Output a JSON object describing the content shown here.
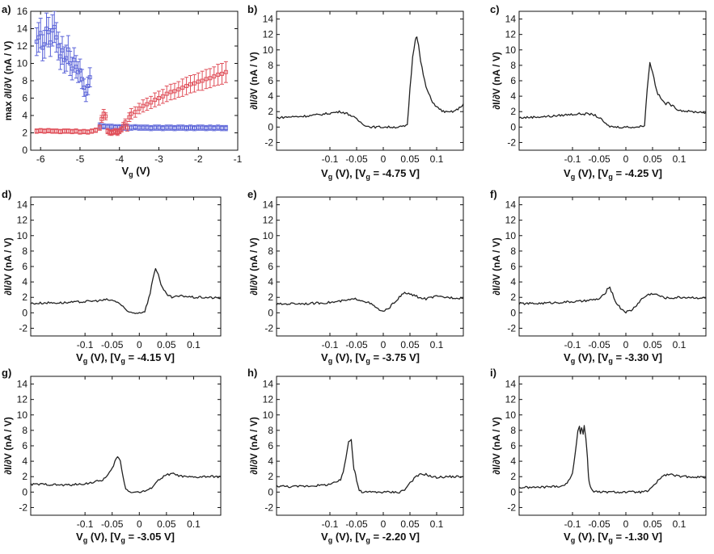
{
  "chart_data": [
    {
      "panel": "a)",
      "type": "scatter",
      "xlabel_main": "V",
      "xlabel_sub": "g",
      "xlabel_tail": " (V)",
      "ylabel": "max ∂I/∂V (nA / V)",
      "xlim": [
        -6.25,
        -1
      ],
      "ylim": [
        0,
        16
      ],
      "xticks": [
        -6,
        -5,
        -4,
        -3,
        -2,
        -1
      ],
      "xtick_labels": [
        "-6",
        "-5",
        "-4",
        "-3",
        "-2",
        "-1"
      ],
      "yticks": [
        0,
        2,
        4,
        6,
        8,
        10,
        12,
        14,
        16
      ],
      "ytick_labels": [
        "0",
        "2",
        "4",
        "6",
        "8",
        "10",
        "12",
        "14",
        "16"
      ],
      "series": [
        {
          "name": "blue",
          "color": "#5a63d8",
          "x": [
            -6.1,
            -6.05,
            -6.0,
            -5.95,
            -5.9,
            -5.85,
            -5.8,
            -5.75,
            -5.7,
            -5.65,
            -5.6,
            -5.55,
            -5.5,
            -5.45,
            -5.4,
            -5.35,
            -5.3,
            -5.25,
            -5.2,
            -5.15,
            -5.1,
            -5.05,
            -5.0,
            -4.95,
            -4.9,
            -4.85,
            -4.8,
            -4.75,
            -4.5,
            -4.4,
            -4.3,
            -4.2,
            -4.1,
            -4.0,
            -3.9,
            -3.8,
            -3.7,
            -3.6,
            -3.5,
            -3.4,
            -3.3,
            -3.2,
            -3.1,
            -3.0,
            -2.9,
            -2.8,
            -2.7,
            -2.6,
            -2.5,
            -2.4,
            -2.3,
            -2.2,
            -2.1,
            -2.0,
            -1.9,
            -1.8,
            -1.7,
            -1.6,
            -1.5,
            -1.4,
            -1.3
          ],
          "y": [
            12.5,
            13.0,
            13.5,
            11.8,
            12.2,
            14.0,
            13.6,
            12.4,
            13.8,
            14.2,
            13.0,
            12.0,
            10.8,
            11.5,
            10.4,
            10.6,
            11.6,
            10.0,
            9.4,
            10.4,
            9.6,
            9.0,
            9.2,
            8.2,
            7.2,
            6.5,
            7.4,
            8.4,
            2.8,
            2.75,
            2.7,
            2.7,
            2.65,
            2.65,
            2.6,
            2.6,
            2.6,
            2.65,
            2.6,
            2.6,
            2.6,
            2.55,
            2.6,
            2.6,
            2.55,
            2.6,
            2.6,
            2.55,
            2.6,
            2.6,
            2.55,
            2.6,
            2.55,
            2.6,
            2.6,
            2.55,
            2.6,
            2.55,
            2.6,
            2.55,
            2.55
          ],
          "err": [
            1.6,
            1.7,
            1.7,
            1.5,
            1.6,
            1.8,
            1.7,
            1.6,
            1.8,
            1.8,
            1.7,
            1.6,
            1.5,
            1.6,
            1.5,
            1.5,
            1.6,
            1.4,
            1.3,
            1.4,
            1.3,
            1.2,
            1.3,
            1.1,
            1.0,
            0.9,
            1.0,
            1.1,
            0.35,
            0.3,
            0.3,
            0.3,
            0.3,
            0.3,
            0.3,
            0.3,
            0.3,
            0.3,
            0.3,
            0.3,
            0.3,
            0.3,
            0.3,
            0.3,
            0.3,
            0.3,
            0.3,
            0.3,
            0.3,
            0.3,
            0.3,
            0.3,
            0.3,
            0.3,
            0.3,
            0.3,
            0.3,
            0.3,
            0.3,
            0.3,
            0.3
          ]
        },
        {
          "name": "red",
          "color": "#e0505a",
          "x": [
            -6.1,
            -6.0,
            -5.9,
            -5.8,
            -5.7,
            -5.6,
            -5.5,
            -5.4,
            -5.3,
            -5.2,
            -5.1,
            -5.0,
            -4.9,
            -4.8,
            -4.7,
            -4.6,
            -4.5,
            -4.45,
            -4.4,
            -4.35,
            -4.3,
            -4.25,
            -4.2,
            -4.15,
            -4.1,
            -4.05,
            -4.0,
            -3.95,
            -3.9,
            -3.85,
            -3.8,
            -3.75,
            -3.7,
            -3.6,
            -3.5,
            -3.4,
            -3.3,
            -3.2,
            -3.1,
            -3.0,
            -2.9,
            -2.8,
            -2.7,
            -2.6,
            -2.5,
            -2.4,
            -2.3,
            -2.2,
            -2.1,
            -2.0,
            -1.9,
            -1.8,
            -1.7,
            -1.6,
            -1.5,
            -1.4,
            -1.3
          ],
          "y": [
            2.2,
            2.25,
            2.2,
            2.25,
            2.2,
            2.2,
            2.15,
            2.2,
            2.2,
            2.15,
            2.2,
            2.1,
            2.15,
            2.1,
            2.2,
            2.3,
            2.6,
            3.6,
            4.2,
            3.9,
            2.2,
            2.05,
            2.0,
            2.1,
            2.2,
            2.0,
            2.2,
            2.4,
            2.8,
            3.2,
            2.6,
            3.8,
            4.2,
            4.4,
            4.8,
            5.1,
            5.3,
            5.5,
            5.8,
            6.0,
            6.2,
            6.5,
            6.7,
            6.8,
            7.0,
            7.2,
            7.4,
            7.6,
            7.7,
            7.9,
            8.0,
            8.2,
            8.3,
            8.5,
            8.7,
            8.8,
            9.0
          ],
          "err": [
            0.25,
            0.25,
            0.25,
            0.25,
            0.25,
            0.25,
            0.25,
            0.25,
            0.25,
            0.25,
            0.25,
            0.25,
            0.25,
            0.25,
            0.25,
            0.25,
            0.3,
            0.4,
            0.5,
            0.4,
            0.3,
            0.3,
            0.3,
            0.3,
            0.3,
            0.3,
            0.3,
            0.3,
            0.4,
            0.4,
            0.4,
            0.5,
            0.6,
            0.6,
            0.6,
            0.7,
            0.7,
            0.7,
            0.8,
            0.8,
            0.8,
            0.9,
            0.9,
            0.9,
            0.9,
            1.0,
            1.0,
            1.0,
            1.0,
            1.0,
            1.1,
            1.1,
            1.1,
            1.1,
            1.2,
            1.2,
            1.2
          ]
        }
      ]
    },
    {
      "panel": "b)",
      "type": "line",
      "vg_value": "-4.75",
      "x": [
        -0.2,
        -0.18,
        -0.15,
        -0.12,
        -0.1,
        -0.09,
        -0.08,
        -0.07,
        -0.06,
        -0.05,
        -0.04,
        -0.03,
        -0.02,
        0.0,
        0.02,
        0.03,
        0.04,
        0.045,
        0.05,
        0.055,
        0.06,
        0.063,
        0.066,
        0.07,
        0.075,
        0.08,
        0.09,
        0.1,
        0.11,
        0.12,
        0.13,
        0.14,
        0.15
      ],
      "y": [
        1.2,
        1.3,
        1.4,
        1.6,
        1.8,
        1.9,
        2.0,
        1.8,
        1.5,
        1.0,
        0.5,
        0.1,
        0.0,
        0.0,
        0.0,
        0.0,
        0.1,
        0.2,
        5.0,
        9.0,
        11.4,
        11.8,
        10.6,
        8.5,
        6.8,
        5.2,
        3.5,
        2.6,
        2.1,
        1.9,
        2.0,
        2.3,
        3.0
      ]
    },
    {
      "panel": "c)",
      "type": "line",
      "vg_value": "-4.25",
      "x": [
        -0.2,
        -0.17,
        -0.14,
        -0.11,
        -0.09,
        -0.07,
        -0.06,
        -0.05,
        -0.04,
        -0.035,
        -0.03,
        -0.02,
        0.0,
        0.02,
        0.03,
        0.035,
        0.04,
        0.045,
        0.05,
        0.055,
        0.06,
        0.07,
        0.075,
        0.08,
        0.09,
        0.1,
        0.12,
        0.15
      ],
      "y": [
        1.2,
        1.3,
        1.4,
        1.6,
        1.7,
        1.7,
        1.6,
        1.2,
        0.6,
        0.2,
        0.1,
        0.0,
        0.0,
        0.0,
        0.1,
        0.3,
        5.0,
        8.3,
        7.2,
        5.5,
        4.3,
        3.3,
        3.0,
        3.1,
        2.6,
        2.2,
        2.0,
        1.9
      ]
    },
    {
      "panel": "d)",
      "type": "line",
      "vg_value": "-4.15",
      "x": [
        -0.2,
        -0.17,
        -0.14,
        -0.11,
        -0.09,
        -0.07,
        -0.06,
        -0.05,
        -0.04,
        -0.03,
        -0.025,
        -0.02,
        -0.01,
        0.0,
        0.01,
        0.02,
        0.025,
        0.03,
        0.035,
        0.04,
        0.05,
        0.06,
        0.07,
        0.08,
        0.1,
        0.12,
        0.15
      ],
      "y": [
        1.2,
        1.3,
        1.3,
        1.4,
        1.5,
        1.6,
        1.7,
        1.6,
        1.4,
        0.8,
        0.3,
        0.1,
        0.0,
        0.0,
        0.2,
        2.5,
        4.5,
        5.8,
        5.0,
        3.5,
        2.4,
        2.0,
        2.1,
        2.2,
        2.0,
        2.0,
        1.9
      ]
    },
    {
      "panel": "e)",
      "type": "line",
      "vg_value": "-3.75",
      "x": [
        -0.2,
        -0.17,
        -0.14,
        -0.11,
        -0.09,
        -0.07,
        -0.05,
        -0.04,
        -0.03,
        -0.02,
        -0.01,
        0.0,
        0.01,
        0.02,
        0.03,
        0.04,
        0.05,
        0.06,
        0.07,
        0.08,
        0.09,
        0.1,
        0.12,
        0.15
      ],
      "y": [
        1.1,
        1.2,
        1.2,
        1.3,
        1.4,
        1.6,
        1.8,
        1.6,
        1.4,
        1.0,
        0.5,
        0.1,
        0.6,
        1.3,
        2.0,
        2.6,
        2.4,
        2.2,
        1.9,
        1.8,
        2.0,
        2.1,
        2.0,
        1.9
      ]
    },
    {
      "panel": "f)",
      "type": "line",
      "vg_value": "-3.30",
      "x": [
        -0.2,
        -0.17,
        -0.14,
        -0.11,
        -0.08,
        -0.06,
        -0.05,
        -0.04,
        -0.035,
        -0.03,
        -0.025,
        -0.02,
        -0.01,
        0.0,
        0.01,
        0.02,
        0.03,
        0.04,
        0.05,
        0.06,
        0.07,
        0.08,
        0.1,
        0.12,
        0.15
      ],
      "y": [
        1.2,
        1.2,
        1.3,
        1.4,
        1.5,
        1.7,
        1.8,
        2.4,
        3.0,
        3.2,
        2.5,
        1.5,
        0.6,
        0.1,
        0.3,
        1.0,
        1.8,
        2.3,
        2.5,
        2.3,
        2.0,
        1.9,
        2.0,
        2.0,
        1.9
      ]
    },
    {
      "panel": "g)",
      "type": "line",
      "vg_value": "-3.05",
      "x": [
        -0.2,
        -0.17,
        -0.14,
        -0.11,
        -0.09,
        -0.07,
        -0.06,
        -0.05,
        -0.045,
        -0.04,
        -0.035,
        -0.03,
        -0.025,
        -0.02,
        -0.01,
        0.0,
        0.01,
        0.02,
        0.03,
        0.04,
        0.05,
        0.06,
        0.07,
        0.08,
        0.1,
        0.12,
        0.15
      ],
      "y": [
        1.0,
        1.0,
        0.9,
        1.0,
        1.2,
        1.5,
        2.0,
        3.0,
        4.0,
        4.6,
        4.0,
        2.0,
        0.5,
        0.1,
        0.0,
        0.0,
        0.1,
        0.4,
        1.2,
        1.8,
        2.2,
        2.4,
        2.2,
        2.0,
        1.9,
        2.0,
        2.0
      ]
    },
    {
      "panel": "h)",
      "type": "line",
      "vg_value": "-2.20",
      "x": [
        -0.2,
        -0.17,
        -0.14,
        -0.11,
        -0.09,
        -0.08,
        -0.075,
        -0.07,
        -0.065,
        -0.06,
        -0.057,
        -0.055,
        -0.052,
        -0.05,
        -0.045,
        -0.04,
        -0.02,
        0.0,
        0.02,
        0.03,
        0.04,
        0.05,
        0.06,
        0.07,
        0.08,
        0.09,
        0.1,
        0.12,
        0.15
      ],
      "y": [
        0.8,
        0.7,
        0.8,
        0.9,
        1.2,
        1.6,
        2.5,
        4.5,
        6.5,
        6.8,
        4.5,
        3.0,
        2.4,
        1.5,
        0.2,
        0.0,
        0.0,
        0.0,
        0.0,
        0.0,
        0.3,
        1.2,
        1.9,
        2.3,
        2.3,
        2.0,
        1.9,
        2.0,
        2.0
      ]
    },
    {
      "panel": "i)",
      "type": "line",
      "vg_value": "-1.30",
      "x": [
        -0.2,
        -0.17,
        -0.14,
        -0.12,
        -0.11,
        -0.1,
        -0.095,
        -0.09,
        -0.087,
        -0.085,
        -0.083,
        -0.08,
        -0.078,
        -0.075,
        -0.072,
        -0.07,
        -0.068,
        -0.065,
        -0.06,
        -0.05,
        -0.03,
        0.0,
        0.03,
        0.04,
        0.05,
        0.06,
        0.07,
        0.08,
        0.09,
        0.1,
        0.12,
        0.15
      ],
      "y": [
        0.6,
        0.6,
        0.7,
        0.8,
        1.1,
        2.5,
        5.0,
        7.8,
        8.5,
        7.5,
        8.4,
        7.6,
        8.6,
        7.0,
        4.5,
        2.0,
        1.0,
        0.5,
        0.1,
        0.0,
        0.0,
        0.0,
        0.0,
        0.1,
        0.6,
        1.5,
        2.1,
        2.3,
        2.2,
        2.0,
        2.0,
        1.9
      ]
    }
  ],
  "trace_axes": {
    "ylabel": "∂I/∂V (nA / V)",
    "xlim": [
      -0.2,
      0.15
    ],
    "ylim": [
      -3,
      15
    ],
    "xticks": [
      -0.1,
      -0.05,
      0,
      0.05,
      0.1
    ],
    "xtick_labels": [
      "-0.1",
      "-0.05",
      "0",
      "0.05",
      "0.1"
    ],
    "yticks": [
      -2,
      0,
      2,
      4,
      6,
      8,
      10,
      12,
      14
    ],
    "ytick_labels": [
      "-2",
      "0",
      "2",
      "4",
      "6",
      "8",
      "10",
      "12",
      "14"
    ],
    "xlabel_main": "V",
    "xlabel_sub": "g",
    "xlabel_mid": " (V), [V",
    "xlabel_eq": " = ",
    "xlabel_unit": " V]"
  }
}
